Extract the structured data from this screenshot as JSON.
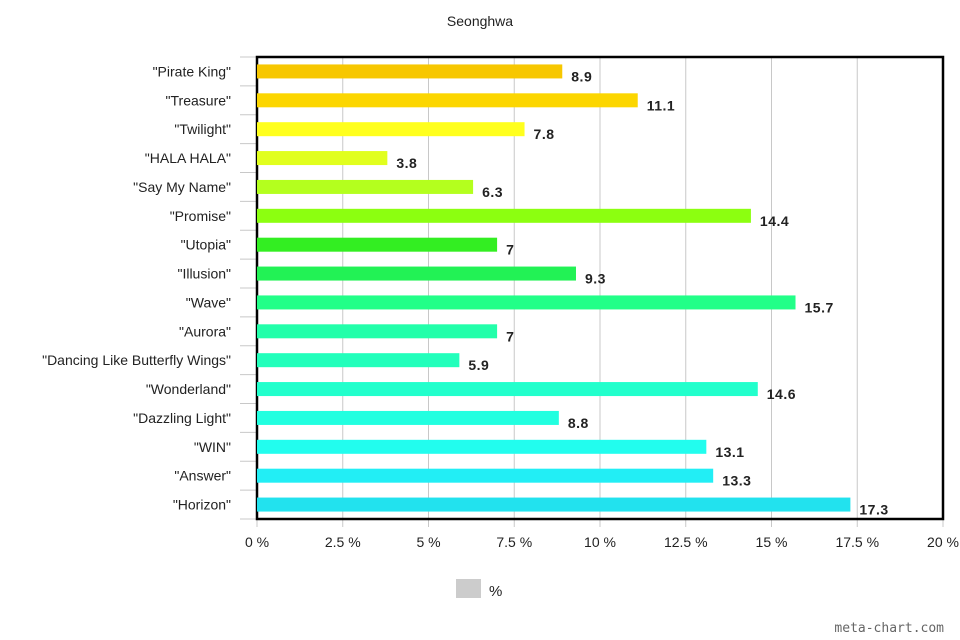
{
  "chart_data": {
    "type": "bar",
    "orientation": "horizontal",
    "title": "Seonghwa",
    "categories": [
      "\"Pirate King\"",
      "\"Treasure\"",
      "\"Twilight\"",
      "\"HALA HALA\"",
      "\"Say My Name\"",
      "\"Promise\"",
      "\"Utopia\"",
      "\"Illusion\"",
      "\"Wave\"",
      "\"Aurora\"",
      "\"Dancing Like Butterfly Wings\"",
      "\"Wonderland\"",
      "\"Dazzling Light\"",
      "\"WIN\"",
      "\"Answer\"",
      "\"Horizon\""
    ],
    "values": [
      8.9,
      11.1,
      7.8,
      3.8,
      6.3,
      14.4,
      7,
      9.3,
      15.7,
      7,
      5.9,
      14.6,
      8.8,
      13.1,
      13.3,
      17.3
    ],
    "value_labels": [
      "8.9",
      "11.1",
      "7.8",
      "3.8",
      "6.3",
      "14.4",
      "7",
      "9.3",
      "15.7",
      "7",
      "5.9",
      "14.6",
      "8.8",
      "13.1",
      "13.3",
      "17.3"
    ],
    "bar_colors": [
      "#f7c700",
      "#fcd600",
      "#ffff1e",
      "#e1ff1e",
      "#b4ff1e",
      "#8cff10",
      "#33ee22",
      "#22f255",
      "#22ff88",
      "#22ffaa",
      "#22ffbb",
      "#22ffcc",
      "#22ffe0",
      "#22fdee",
      "#22eef5",
      "#22e2ee"
    ],
    "xlim": [
      0,
      20
    ],
    "x_ticks": [
      0,
      2.5,
      5,
      7.5,
      10,
      12.5,
      15,
      17.5,
      20
    ],
    "x_tick_labels": [
      "0 %",
      "2.5 %",
      "5 %",
      "7.5 %",
      "10 %",
      "12.5 %",
      "15 %",
      "17.5 %",
      "20 %"
    ],
    "grid": true,
    "legend": {
      "label": "%",
      "position": "bottom",
      "swatch_color": "#cccccc"
    }
  },
  "credit": "meta-chart.com"
}
